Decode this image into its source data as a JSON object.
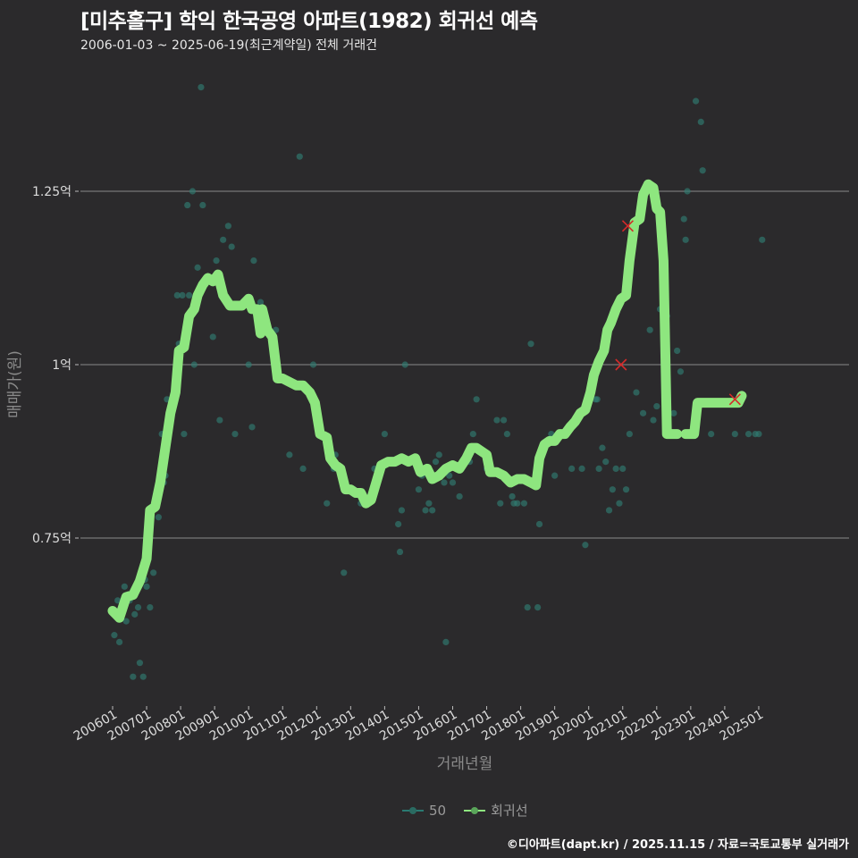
{
  "header": {
    "title": "[미추홀구] 학익 한국공영 아파트(1982) 회귀선 예측",
    "subtitle": "2006-01-03 ~ 2025-06-19(최근계약일) 전체 거래건"
  },
  "footer": {
    "credit": "©디아파트(dapt.kr) / 2025.11.15 / 자료=국토교통부 실거래가"
  },
  "legend": {
    "items": [
      {
        "label": "50",
        "color": "#2a7a72"
      },
      {
        "label": "회귀선",
        "color": "#8ee67f"
      }
    ]
  },
  "colors": {
    "background": "#2b2a2c",
    "grid": "#8a8a8a",
    "points": "#2f7d72",
    "regression": "#8ee67f",
    "marker_x": "#d42a2a"
  },
  "chart_data": {
    "type": "scatter",
    "title": "[미추홀구] 학익 한국공영 아파트(1982) 회귀선 예측",
    "subtitle": "2006-01-03 ~ 2025-06-19(최근계약일) 전체 거래건",
    "xlabel": "거래년월",
    "ylabel": "매매가(원)",
    "x_ticks": [
      "200601",
      "200701",
      "200801",
      "200901",
      "201001",
      "201101",
      "201201",
      "201301",
      "201401",
      "201501",
      "201601",
      "201701",
      "201801",
      "201901",
      "202001",
      "202101",
      "202201",
      "202301",
      "202401",
      "202501"
    ],
    "y_ticks": [
      {
        "value": 0.75,
        "label": "0.75억"
      },
      {
        "value": 1.0,
        "label": "1억"
      },
      {
        "value": 1.25,
        "label": "1.25억"
      }
    ],
    "ylim": [
      0.52,
      1.42
    ],
    "grid": true,
    "legend_position": "bottom",
    "series": [
      {
        "name": "50",
        "type": "scatter",
        "points": [
          [
            2006.05,
            0.61
          ],
          [
            2006.15,
            0.66
          ],
          [
            2006.2,
            0.6
          ],
          [
            2006.35,
            0.68
          ],
          [
            2006.4,
            0.63
          ],
          [
            2006.5,
            0.66
          ],
          [
            2006.6,
            0.55
          ],
          [
            2006.65,
            0.64
          ],
          [
            2006.75,
            0.65
          ],
          [
            2006.8,
            0.57
          ],
          [
            2006.9,
            0.55
          ],
          [
            2006.95,
            0.69
          ],
          [
            2007.0,
            0.68
          ],
          [
            2007.1,
            0.65
          ],
          [
            2007.2,
            0.7
          ],
          [
            2007.35,
            0.78
          ],
          [
            2007.45,
            0.9
          ],
          [
            2007.5,
            0.83
          ],
          [
            2007.55,
            0.84
          ],
          [
            2007.6,
            0.95
          ],
          [
            2007.8,
            0.95
          ],
          [
            2007.9,
            1.1
          ],
          [
            2007.95,
            1.03
          ],
          [
            2008.05,
            1.1
          ],
          [
            2008.1,
            0.9
          ],
          [
            2008.2,
            1.23
          ],
          [
            2008.25,
            1.1
          ],
          [
            2008.35,
            1.25
          ],
          [
            2008.4,
            1.0
          ],
          [
            2008.5,
            1.14
          ],
          [
            2008.6,
            1.4
          ],
          [
            2008.65,
            1.23
          ],
          [
            2008.75,
            1.12
          ],
          [
            2008.95,
            1.04
          ],
          [
            2009.05,
            1.15
          ],
          [
            2009.15,
            0.92
          ],
          [
            2009.25,
            1.18
          ],
          [
            2009.4,
            1.2
          ],
          [
            2009.5,
            1.17
          ],
          [
            2009.6,
            0.9
          ],
          [
            2010.0,
            1.0
          ],
          [
            2010.1,
            0.91
          ],
          [
            2010.15,
            1.15
          ],
          [
            2010.35,
            1.09
          ],
          [
            2010.5,
            1.05
          ],
          [
            2010.8,
            1.05
          ],
          [
            2011.2,
            0.87
          ],
          [
            2011.5,
            1.3
          ],
          [
            2011.6,
            0.85
          ],
          [
            2011.9,
            1.0
          ],
          [
            2012.3,
            0.8
          ],
          [
            2012.5,
            0.85
          ],
          [
            2012.55,
            0.87
          ],
          [
            2012.8,
            0.7
          ],
          [
            2013.3,
            0.8
          ],
          [
            2013.5,
            0.8
          ],
          [
            2013.7,
            0.85
          ],
          [
            2014.0,
            0.9
          ],
          [
            2014.4,
            0.77
          ],
          [
            2014.45,
            0.73
          ],
          [
            2014.5,
            0.79
          ],
          [
            2014.6,
            1.0
          ],
          [
            2015.0,
            0.82
          ],
          [
            2015.1,
            0.84
          ],
          [
            2015.2,
            0.79
          ],
          [
            2015.3,
            0.8
          ],
          [
            2015.4,
            0.79
          ],
          [
            2015.5,
            0.86
          ],
          [
            2015.6,
            0.87
          ],
          [
            2015.75,
            0.83
          ],
          [
            2015.8,
            0.6
          ],
          [
            2015.9,
            0.84
          ],
          [
            2016.0,
            0.83
          ],
          [
            2016.2,
            0.81
          ],
          [
            2016.3,
            0.86
          ],
          [
            2016.5,
            0.86
          ],
          [
            2016.6,
            0.9
          ],
          [
            2016.7,
            0.95
          ],
          [
            2017.0,
            0.85
          ],
          [
            2017.3,
            0.92
          ],
          [
            2017.4,
            0.8
          ],
          [
            2017.5,
            0.92
          ],
          [
            2017.6,
            0.9
          ],
          [
            2017.75,
            0.81
          ],
          [
            2017.8,
            0.8
          ],
          [
            2017.9,
            0.8
          ],
          [
            2018.1,
            0.8
          ],
          [
            2018.2,
            0.65
          ],
          [
            2018.3,
            1.03
          ],
          [
            2018.5,
            0.65
          ],
          [
            2018.55,
            0.77
          ],
          [
            2018.9,
            0.9
          ],
          [
            2019.0,
            0.84
          ],
          [
            2019.5,
            0.85
          ],
          [
            2019.8,
            0.85
          ],
          [
            2019.9,
            0.74
          ],
          [
            2020.2,
            0.95
          ],
          [
            2020.25,
            0.95
          ],
          [
            2020.3,
            0.85
          ],
          [
            2020.4,
            0.88
          ],
          [
            2020.5,
            0.86
          ],
          [
            2020.6,
            0.79
          ],
          [
            2020.7,
            0.82
          ],
          [
            2020.8,
            0.85
          ],
          [
            2020.9,
            0.8
          ],
          [
            2021.0,
            0.85
          ],
          [
            2021.1,
            0.82
          ],
          [
            2021.2,
            0.9
          ],
          [
            2021.3,
            1.2
          ],
          [
            2021.4,
            0.96
          ],
          [
            2021.6,
            0.93
          ],
          [
            2021.8,
            1.05
          ],
          [
            2021.9,
            0.92
          ],
          [
            2022.0,
            0.94
          ],
          [
            2022.1,
            1.08
          ],
          [
            2022.2,
            1.06
          ],
          [
            2022.3,
            1.07
          ],
          [
            2022.5,
            0.93
          ],
          [
            2022.6,
            1.02
          ],
          [
            2022.7,
            0.99
          ],
          [
            2022.8,
            1.21
          ],
          [
            2022.85,
            1.18
          ],
          [
            2022.9,
            1.25
          ],
          [
            2023.15,
            1.38
          ],
          [
            2023.3,
            1.35
          ],
          [
            2023.35,
            1.28
          ],
          [
            2023.6,
            0.9
          ],
          [
            2024.3,
            0.9
          ],
          [
            2024.7,
            0.9
          ],
          [
            2024.9,
            0.9
          ],
          [
            2025.0,
            0.9
          ],
          [
            2025.1,
            1.18
          ]
        ]
      },
      {
        "name": "회귀선",
        "type": "line",
        "points": [
          [
            2006.0,
            0.645
          ],
          [
            2006.2,
            0.635
          ],
          [
            2006.4,
            0.665
          ],
          [
            2006.6,
            0.668
          ],
          [
            2006.8,
            0.688
          ],
          [
            2007.0,
            0.72
          ],
          [
            2007.1,
            0.79
          ],
          [
            2007.25,
            0.795
          ],
          [
            2007.4,
            0.83
          ],
          [
            2007.55,
            0.88
          ],
          [
            2007.7,
            0.93
          ],
          [
            2007.85,
            0.96
          ],
          [
            2007.95,
            1.02
          ],
          [
            2008.1,
            1.025
          ],
          [
            2008.25,
            1.07
          ],
          [
            2008.4,
            1.08
          ],
          [
            2008.5,
            1.1
          ],
          [
            2008.65,
            1.115
          ],
          [
            2008.8,
            1.125
          ],
          [
            2008.95,
            1.12
          ],
          [
            2009.1,
            1.13
          ],
          [
            2009.25,
            1.1
          ],
          [
            2009.45,
            1.085
          ],
          [
            2009.6,
            1.085
          ],
          [
            2009.8,
            1.085
          ],
          [
            2010.0,
            1.095
          ],
          [
            2010.1,
            1.08
          ],
          [
            2010.25,
            1.08
          ],
          [
            2010.35,
            1.045
          ],
          [
            2010.4,
            1.08
          ],
          [
            2010.55,
            1.05
          ],
          [
            2010.7,
            1.04
          ],
          [
            2010.85,
            0.98
          ],
          [
            2011.0,
            0.98
          ],
          [
            2011.2,
            0.975
          ],
          [
            2011.4,
            0.97
          ],
          [
            2011.6,
            0.97
          ],
          [
            2011.8,
            0.96
          ],
          [
            2011.95,
            0.945
          ],
          [
            2012.1,
            0.9
          ],
          [
            2012.3,
            0.895
          ],
          [
            2012.4,
            0.865
          ],
          [
            2012.55,
            0.855
          ],
          [
            2012.7,
            0.85
          ],
          [
            2012.85,
            0.82
          ],
          [
            2013.0,
            0.82
          ],
          [
            2013.15,
            0.815
          ],
          [
            2013.3,
            0.815
          ],
          [
            2013.45,
            0.8
          ],
          [
            2013.6,
            0.805
          ],
          [
            2013.75,
            0.83
          ],
          [
            2013.9,
            0.855
          ],
          [
            2014.1,
            0.86
          ],
          [
            2014.3,
            0.86
          ],
          [
            2014.5,
            0.865
          ],
          [
            2014.7,
            0.86
          ],
          [
            2014.9,
            0.865
          ],
          [
            2015.05,
            0.845
          ],
          [
            2015.25,
            0.85
          ],
          [
            2015.4,
            0.835
          ],
          [
            2015.6,
            0.84
          ],
          [
            2015.8,
            0.85
          ],
          [
            2016.0,
            0.855
          ],
          [
            2016.2,
            0.85
          ],
          [
            2016.4,
            0.865
          ],
          [
            2016.55,
            0.88
          ],
          [
            2016.7,
            0.88
          ],
          [
            2016.85,
            0.875
          ],
          [
            2017.0,
            0.87
          ],
          [
            2017.1,
            0.845
          ],
          [
            2017.3,
            0.845
          ],
          [
            2017.5,
            0.84
          ],
          [
            2017.7,
            0.83
          ],
          [
            2017.9,
            0.835
          ],
          [
            2018.1,
            0.835
          ],
          [
            2018.3,
            0.83
          ],
          [
            2018.45,
            0.826
          ],
          [
            2018.55,
            0.865
          ],
          [
            2018.7,
            0.885
          ],
          [
            2018.85,
            0.89
          ],
          [
            2019.0,
            0.89
          ],
          [
            2019.15,
            0.9
          ],
          [
            2019.3,
            0.9
          ],
          [
            2019.45,
            0.91
          ],
          [
            2019.6,
            0.918
          ],
          [
            2019.75,
            0.93
          ],
          [
            2019.9,
            0.935
          ],
          [
            2020.05,
            0.96
          ],
          [
            2020.15,
            0.985
          ],
          [
            2020.3,
            1.005
          ],
          [
            2020.45,
            1.02
          ],
          [
            2020.55,
            1.05
          ],
          [
            2020.65,
            1.06
          ],
          [
            2020.8,
            1.08
          ],
          [
            2020.95,
            1.095
          ],
          [
            2021.1,
            1.1
          ],
          [
            2021.2,
            1.15
          ],
          [
            2021.35,
            1.205
          ],
          [
            2021.5,
            1.21
          ],
          [
            2021.6,
            1.245
          ],
          [
            2021.75,
            1.26
          ],
          [
            2021.9,
            1.255
          ],
          [
            2022.0,
            1.225
          ],
          [
            2022.1,
            1.22
          ],
          [
            2022.2,
            1.15
          ],
          [
            2022.3,
            0.9
          ],
          [
            2022.45,
            0.9
          ],
          [
            2022.6,
            0.9
          ]
        ]
      }
    ],
    "highlight_markers": [
      {
        "x": 2021.15,
        "y": 1.2,
        "shape": "x"
      },
      {
        "x": 2020.95,
        "y": 1.0,
        "shape": "x"
      },
      {
        "x": 2024.3,
        "y": 0.95,
        "shape": "x"
      }
    ]
  }
}
